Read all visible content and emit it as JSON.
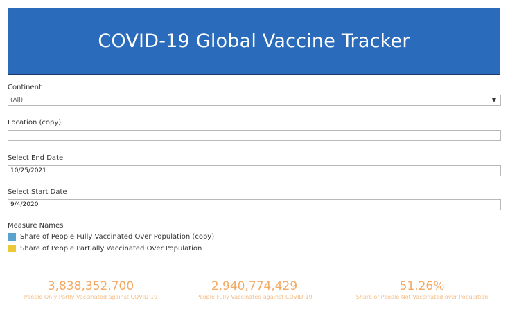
{
  "header": {
    "title": "COVID-19 Global Vaccine Tracker",
    "background_color": "#2a6cbb"
  },
  "filters": {
    "continent": {
      "label": "Continent",
      "value": "(All)",
      "icon": "chevron-down-icon"
    },
    "location": {
      "label": "Location (copy)",
      "value": ""
    },
    "end_date": {
      "label": "Select End Date",
      "value": "10/25/2021"
    },
    "start_date": {
      "label": "Select Start Date",
      "value": "9/4/2020"
    }
  },
  "legend": {
    "title": "Measure Names",
    "items": [
      {
        "label": "Share of People Fully Vaccinated Over Population (copy)",
        "color": "#5ba3cf"
      },
      {
        "label": "Share of People Partially Vaccinated Over Population",
        "color": "#ebc83c"
      }
    ]
  },
  "kpis": [
    {
      "value": "3,838,352,700",
      "label": "People Only Partly Vaccinated against COVID-19"
    },
    {
      "value": "2,940,774,429",
      "label": "People Fully Vaccinated against COVID-19"
    },
    {
      "value": "51.26%",
      "label": "Share of People Not Vaccinated over Population"
    }
  ],
  "kpi_color": "#f4a965"
}
